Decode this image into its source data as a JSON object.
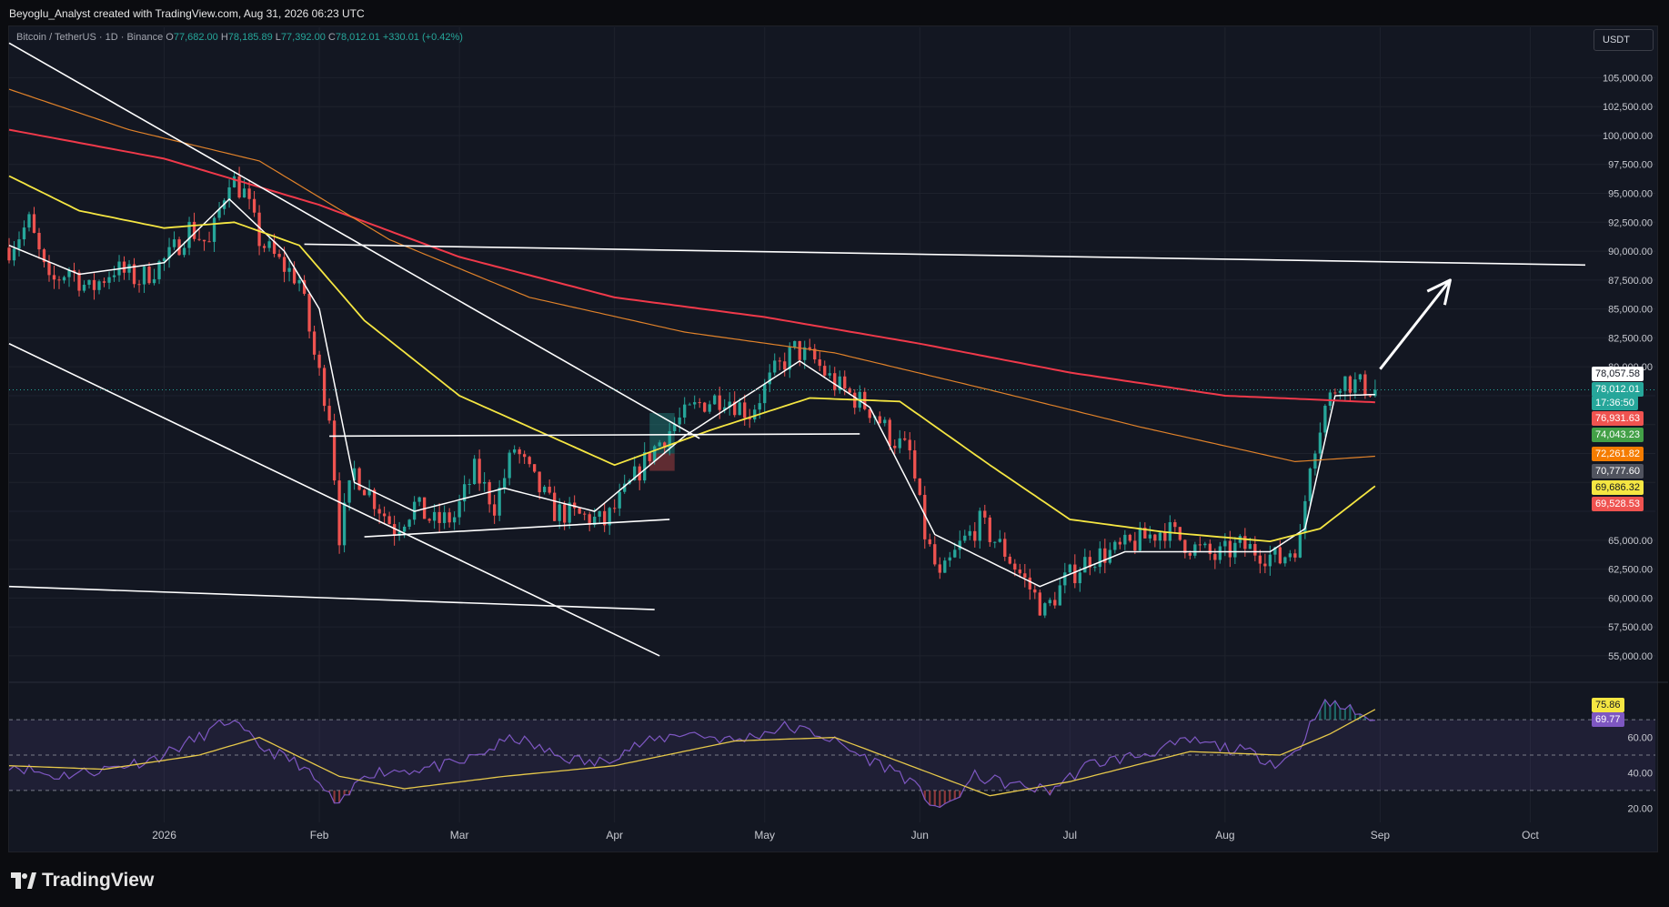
{
  "header": {
    "credit": "Beyoglu_Analyst created with TradingView.com, Aug 31, 2026 06:23 UTC",
    "symbol": "Bitcoin / TetherUS · 1D · Binance",
    "open_label": "O",
    "open": "77,682.00",
    "high_label": "H",
    "high": "78,185.89",
    "low_label": "L",
    "low": "77,392.00",
    "close_label": "C",
    "close": "78,012.01",
    "change": "+330.01 (+0.42%)"
  },
  "currency_button": "USDT",
  "logo_text": "TradingView",
  "colors": {
    "background": "#131722",
    "up": "#26a69a",
    "down": "#ef5350",
    "ema_fast": "#ffffff",
    "ema_50": "#f5e642",
    "ma_200": "#f0394a",
    "ema_200": "#e0822a",
    "rsi": "#7e57c2",
    "rsi_ma": "#e6c84a",
    "trendline": "#ffffff"
  },
  "price_labels": [
    {
      "text": "78,057.58",
      "bg": "#ffffff",
      "fg": "#131722"
    },
    {
      "text": "78,012.01",
      "bg": "#26a69a",
      "fg": "#ffffff"
    },
    {
      "text": "17:36:50",
      "bg": "#26a69a",
      "fg": "#ffffff"
    },
    {
      "text": "76,931.63",
      "bg": "#ef5350",
      "fg": "#ffffff"
    },
    {
      "text": "74,043.23",
      "bg": "#43a047",
      "fg": "#ffffff"
    },
    {
      "text": "72,261.82",
      "bg": "#f57c00",
      "fg": "#ffffff"
    },
    {
      "text": "70,777.60",
      "bg": "#50535e",
      "fg": "#ffffff"
    },
    {
      "text": "69,686.32",
      "bg": "#f5e642",
      "fg": "#131722"
    },
    {
      "text": "69,528.53",
      "bg": "#ef5350",
      "fg": "#ffffff"
    }
  ],
  "rsi_labels": [
    {
      "text": "75.86",
      "bg": "#f5e642",
      "fg": "#131722"
    },
    {
      "text": "69.77",
      "bg": "#7e57c2",
      "fg": "#ffffff"
    }
  ],
  "chart_data": [
    {
      "type": "candlestick",
      "title": "Bitcoin / TetherUS · 1D · Binance",
      "x_ticks": [
        "2026",
        "Feb",
        "Mar",
        "Apr",
        "May",
        "Jun",
        "Jul",
        "Aug",
        "Sep",
        "Oct"
      ],
      "x_tick_dates": [
        "2026-01-01",
        "2026-02-01",
        "2026-03-01",
        "2026-04-01",
        "2026-05-01",
        "2026-06-01",
        "2026-07-01",
        "2026-08-01",
        "2026-09-01",
        "2026-10-01"
      ],
      "x_range": [
        "2025-12-01",
        "2026-10-26"
      ],
      "y_ticks": [
        "105,000.00",
        "102,500.00",
        "100,000.00",
        "97,500.00",
        "95,000.00",
        "92,500.00",
        "90,000.00",
        "87,500.00",
        "85,000.00",
        "82,500.00",
        "80,000.00",
        "57,500.00",
        "55,000.00"
      ],
      "y_range": [
        53500,
        107000
      ],
      "ohlc_anchors": [
        [
          "2025-12-01",
          90300
        ],
        [
          "2025-12-05",
          92500
        ],
        [
          "2025-12-09",
          87000
        ],
        [
          "2025-12-13",
          88500
        ],
        [
          "2025-12-17",
          86600
        ],
        [
          "2025-12-22",
          88500
        ],
        [
          "2025-12-27",
          87500
        ],
        [
          "2026-01-02",
          89500
        ],
        [
          "2026-01-06",
          92000
        ],
        [
          "2026-01-10",
          90500
        ],
        [
          "2026-01-14",
          96500
        ],
        [
          "2026-01-17",
          95000
        ],
        [
          "2026-01-20",
          91000
        ],
        [
          "2026-01-24",
          89000
        ],
        [
          "2026-01-28",
          87500
        ],
        [
          "2026-01-31",
          81000
        ],
        [
          "2026-02-03",
          76000
        ],
        [
          "2026-02-05",
          65500
        ],
        [
          "2026-02-08",
          71000
        ],
        [
          "2026-02-12",
          68500
        ],
        [
          "2026-02-16",
          66000
        ],
        [
          "2026-02-20",
          68000
        ],
        [
          "2026-02-24",
          66500
        ],
        [
          "2026-02-28",
          67000
        ],
        [
          "2026-03-04",
          71000
        ],
        [
          "2026-03-08",
          68000
        ],
        [
          "2026-03-12",
          73000
        ],
        [
          "2026-03-16",
          70000
        ],
        [
          "2026-03-20",
          67500
        ],
        [
          "2026-03-26",
          67000
        ],
        [
          "2026-03-30",
          66500
        ],
        [
          "2026-04-03",
          69000
        ],
        [
          "2026-04-08",
          72500
        ],
        [
          "2026-04-13",
          75000
        ],
        [
          "2026-04-18",
          76800
        ],
        [
          "2026-04-23",
          77500
        ],
        [
          "2026-04-28",
          76000
        ],
        [
          "2026-05-03",
          79500
        ],
        [
          "2026-05-07",
          81500
        ],
        [
          "2026-05-11",
          80500
        ],
        [
          "2026-05-15",
          78500
        ],
        [
          "2026-05-20",
          77000
        ],
        [
          "2026-05-23",
          76000
        ],
        [
          "2026-05-26",
          74000
        ],
        [
          "2026-05-30",
          72500
        ],
        [
          "2026-06-02",
          65500
        ],
        [
          "2026-06-05",
          61500
        ],
        [
          "2026-06-09",
          64500
        ],
        [
          "2026-06-13",
          66500
        ],
        [
          "2026-06-18",
          64000
        ],
        [
          "2026-06-22",
          61500
        ],
        [
          "2026-06-26",
          58800
        ],
        [
          "2026-06-30",
          61500
        ],
        [
          "2026-07-05",
          63500
        ],
        [
          "2026-07-10",
          64000
        ],
        [
          "2026-07-15",
          65000
        ],
        [
          "2026-07-20",
          66000
        ],
        [
          "2026-07-25",
          64500
        ],
        [
          "2026-07-30",
          63500
        ],
        [
          "2026-08-04",
          64500
        ],
        [
          "2026-08-08",
          64000
        ],
        [
          "2026-08-12",
          63300
        ],
        [
          "2026-08-16",
          65000
        ],
        [
          "2026-08-18",
          72000
        ],
        [
          "2026-08-21",
          76500
        ],
        [
          "2026-08-24",
          79000
        ],
        [
          "2026-08-27",
          78500
        ],
        [
          "2026-08-31",
          78012
        ]
      ],
      "last_close": 78012.01,
      "series": [
        {
          "key": "ema_fast",
          "points": [
            [
              "2025-12-01",
              90500
            ],
            [
              "2025-12-15",
              88000
            ],
            [
              "2026-01-01",
              89000
            ],
            [
              "2026-01-14",
              94500
            ],
            [
              "2026-01-25",
              90000
            ],
            [
              "2026-02-01",
              85000
            ],
            [
              "2026-02-08",
              70000
            ],
            [
              "2026-02-20",
              67500
            ],
            [
              "2026-03-10",
              69500
            ],
            [
              "2026-03-28",
              67500
            ],
            [
              "2026-04-15",
              74000
            ],
            [
              "2026-05-08",
              80500
            ],
            [
              "2026-05-22",
              76500
            ],
            [
              "2026-06-04",
              65500
            ],
            [
              "2026-06-25",
              61000
            ],
            [
              "2026-07-12",
              64000
            ],
            [
              "2026-08-10",
              64000
            ],
            [
              "2026-08-17",
              66000
            ],
            [
              "2026-08-23",
              77500
            ],
            [
              "2026-08-31",
              77600
            ]
          ]
        },
        {
          "key": "ema_50",
          "points": [
            [
              "2025-12-01",
              96500
            ],
            [
              "2025-12-15",
              93500
            ],
            [
              "2026-01-01",
              92000
            ],
            [
              "2026-01-15",
              92500
            ],
            [
              "2026-01-28",
              90500
            ],
            [
              "2026-02-10",
              84000
            ],
            [
              "2026-03-01",
              77500
            ],
            [
              "2026-04-01",
              71500
            ],
            [
              "2026-04-20",
              74500
            ],
            [
              "2026-05-10",
              77300
            ],
            [
              "2026-05-28",
              77000
            ],
            [
              "2026-06-15",
              71500
            ],
            [
              "2026-07-01",
              66800
            ],
            [
              "2026-07-20",
              65700
            ],
            [
              "2026-08-10",
              64900
            ],
            [
              "2026-08-20",
              66000
            ],
            [
              "2026-08-31",
              69686
            ]
          ]
        },
        {
          "key": "ma_200",
          "points": [
            [
              "2025-12-01",
              100500
            ],
            [
              "2026-01-01",
              98000
            ],
            [
              "2026-02-01",
              94000
            ],
            [
              "2026-03-01",
              89500
            ],
            [
              "2026-04-01",
              86000
            ],
            [
              "2026-05-01",
              84300
            ],
            [
              "2026-06-01",
              82000
            ],
            [
              "2026-07-01",
              79500
            ],
            [
              "2026-08-01",
              77500
            ],
            [
              "2026-08-31",
              76932
            ]
          ]
        },
        {
          "key": "ema_200",
          "points": [
            [
              "2025-12-01",
              104000
            ],
            [
              "2025-12-25",
              100500
            ],
            [
              "2026-01-20",
              97800
            ],
            [
              "2026-02-15",
              91000
            ],
            [
              "2026-03-15",
              86000
            ],
            [
              "2026-04-15",
              83000
            ],
            [
              "2026-05-15",
              81200
            ],
            [
              "2026-06-15",
              78000
            ],
            [
              "2026-07-15",
              74800
            ],
            [
              "2026-08-15",
              71800
            ],
            [
              "2026-08-31",
              72262
            ]
          ]
        }
      ],
      "trendlines": [
        [
          [
            "2025-12-01",
            108000
          ],
          [
            "2026-04-18",
            73800
          ]
        ],
        [
          [
            "2025-12-01",
            82000
          ],
          [
            "2026-04-10",
            55000
          ]
        ],
        [
          [
            "2025-12-01",
            61000
          ],
          [
            "2026-04-09",
            59000
          ]
        ],
        [
          [
            "2026-01-29",
            90600
          ],
          [
            "2026-10-12",
            88800
          ]
        ],
        [
          [
            "2026-02-03",
            74000
          ],
          [
            "2026-05-20",
            74200
          ]
        ],
        [
          [
            "2026-02-10",
            65300
          ],
          [
            "2026-04-12",
            66800
          ]
        ]
      ],
      "arrow": [
        [
          "2026-09-01",
          79800
        ],
        [
          "2026-09-15",
          87500
        ]
      ],
      "zones": [
        {
          "color": "#26a69a",
          "from": [
            "2026-04-08",
            76000
          ],
          "to": [
            "2026-04-13",
            72500
          ]
        },
        {
          "color": "#ef5350",
          "from": [
            "2026-04-08",
            72500
          ],
          "to": [
            "2026-04-13",
            71000
          ]
        }
      ],
      "last_price_dots": 78012.01
    },
    {
      "type": "line",
      "title": "RSI",
      "y_ticks": [
        "60.00",
        "40.00",
        "20.00"
      ],
      "y_range": [
        14,
        85
      ],
      "bands": [
        70,
        50,
        30
      ],
      "rsi_anchors": [
        [
          "2025-12-01",
          45
        ],
        [
          "2025-12-10",
          38
        ],
        [
          "2025-12-20",
          42
        ],
        [
          "2025-12-30",
          48
        ],
        [
          "2026-01-08",
          60
        ],
        [
          "2026-01-14",
          70
        ],
        [
          "2026-01-20",
          55
        ],
        [
          "2026-01-28",
          45
        ],
        [
          "2026-02-02",
          30
        ],
        [
          "2026-02-05",
          20
        ],
        [
          "2026-02-10",
          40
        ],
        [
          "2026-02-20",
          42
        ],
        [
          "2026-03-01",
          45
        ],
        [
          "2026-03-12",
          60
        ],
        [
          "2026-03-20",
          50
        ],
        [
          "2026-03-28",
          45
        ],
        [
          "2026-04-05",
          55
        ],
        [
          "2026-04-15",
          63
        ],
        [
          "2026-04-25",
          58
        ],
        [
          "2026-05-05",
          66
        ],
        [
          "2026-05-12",
          62
        ],
        [
          "2026-05-20",
          50
        ],
        [
          "2026-05-28",
          40
        ],
        [
          "2026-06-03",
          24
        ],
        [
          "2026-06-06",
          19
        ],
        [
          "2026-06-12",
          38
        ],
        [
          "2026-06-20",
          33
        ],
        [
          "2026-06-27",
          30
        ],
        [
          "2026-07-05",
          45
        ],
        [
          "2026-07-15",
          50
        ],
        [
          "2026-07-25",
          58
        ],
        [
          "2026-08-05",
          52
        ],
        [
          "2026-08-12",
          45
        ],
        [
          "2026-08-16",
          55
        ],
        [
          "2026-08-20",
          79
        ],
        [
          "2026-08-25",
          77
        ],
        [
          "2026-08-31",
          69.77
        ]
      ],
      "rsi_ma_anchors": [
        [
          "2025-12-01",
          44
        ],
        [
          "2025-12-20",
          42
        ],
        [
          "2026-01-08",
          50
        ],
        [
          "2026-01-20",
          60
        ],
        [
          "2026-02-05",
          38
        ],
        [
          "2026-02-18",
          31
        ],
        [
          "2026-03-10",
          38
        ],
        [
          "2026-04-01",
          44
        ],
        [
          "2026-04-25",
          58
        ],
        [
          "2026-05-15",
          60
        ],
        [
          "2026-06-01",
          42
        ],
        [
          "2026-06-15",
          27
        ],
        [
          "2026-07-01",
          35
        ],
        [
          "2026-07-25",
          52
        ],
        [
          "2026-08-12",
          50
        ],
        [
          "2026-08-22",
          62
        ],
        [
          "2026-08-31",
          75.86
        ]
      ]
    }
  ]
}
